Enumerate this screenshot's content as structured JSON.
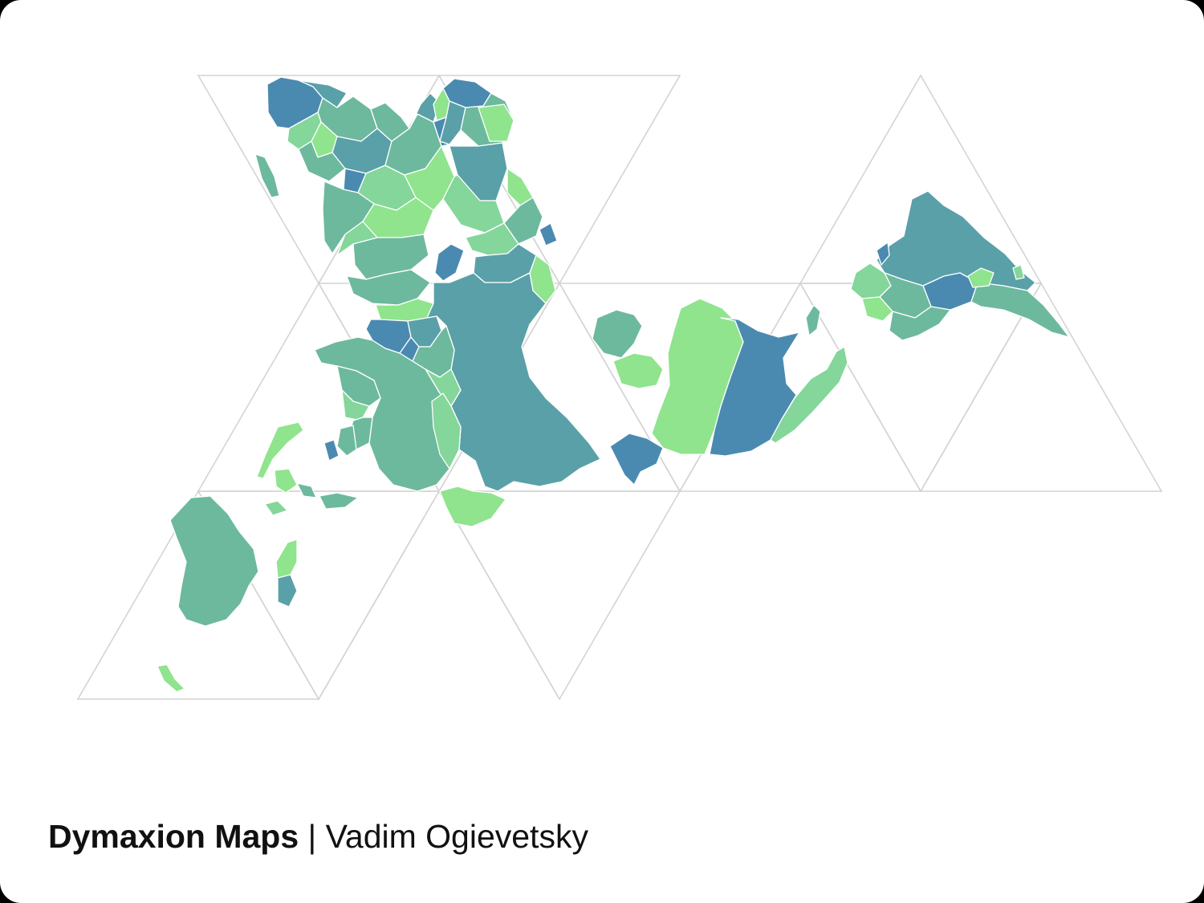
{
  "caption": {
    "title": "Dymaxion Maps",
    "separator": " | ",
    "author": "Vadim Ogievetsky"
  },
  "map": {
    "projection": "dymaxion",
    "palette": {
      "light_green": "#8fe48d",
      "mint": "#84d69a",
      "sea_green": "#6db99e",
      "teal": "#5aa0a8",
      "blue": "#4a8ab0",
      "grid_line": "#d4d4d4",
      "border": "#ffffff"
    }
  }
}
